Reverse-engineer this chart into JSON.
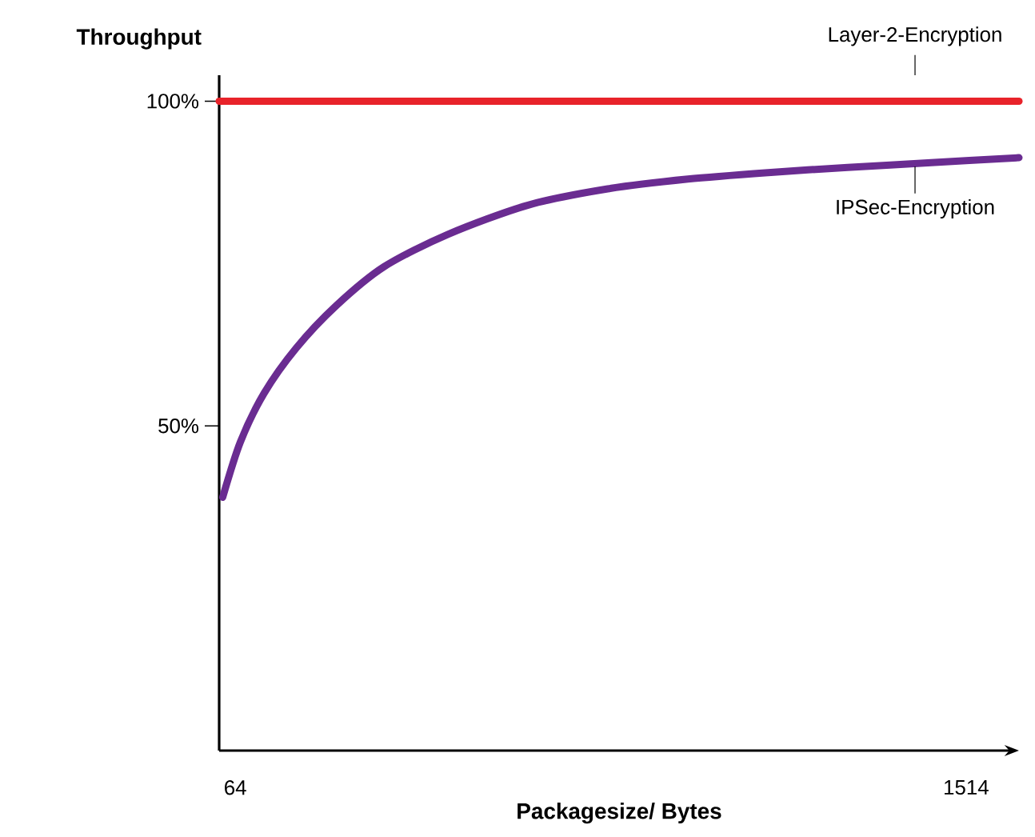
{
  "chart_data": {
    "type": "line",
    "xlabel": "Packagesize/ Bytes",
    "ylabel": "Throughput",
    "xlim": [
      32,
      1619
    ],
    "ylim": [
      0,
      104
    ],
    "xticks": [
      64,
      1514
    ],
    "yticks": [
      {
        "value": 50,
        "label": "50%"
      },
      {
        "value": 100,
        "label": "100%"
      }
    ],
    "legend": false,
    "grid": false,
    "marker": "none",
    "line_style": "solid",
    "series": [
      {
        "name": "Layer-2-Encryption",
        "color": "#e8232a",
        "x": [
          32,
          1619
        ],
        "values": [
          100,
          100
        ]
      },
      {
        "name": "IPSec-Encryption",
        "color": "#6a2c91",
        "x": [
          39,
          74,
          121,
          185,
          264,
          359,
          486,
          645,
          803,
          962,
          1121,
          1279,
          1438,
          1619
        ],
        "values": [
          39,
          47.5,
          55,
          62,
          68.5,
          74.5,
          79.5,
          84,
          86.5,
          88,
          89,
          89.8,
          90.5,
          91.3
        ]
      }
    ]
  }
}
